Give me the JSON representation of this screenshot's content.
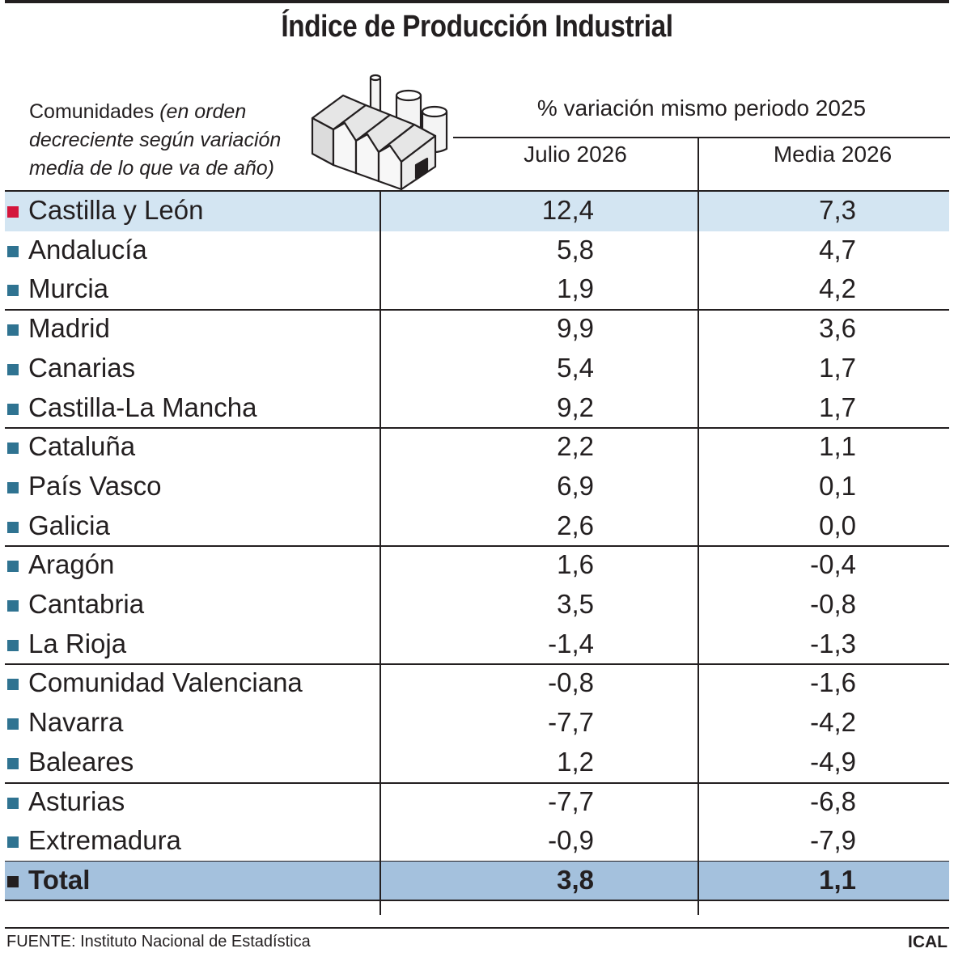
{
  "title": "Índice de Producción Industrial",
  "header": {
    "row_label_main": "Comunidades",
    "row_label_note": "(en orden decreciente según variación media de lo que va de año)",
    "group": "% variación mismo periodo 2025",
    "col_julio": "Julio 2026",
    "col_media": "Media 2026"
  },
  "icon": "factory-icon",
  "colors": {
    "highlight_row": "#d3e5f2",
    "total_row": "#a4c1dd",
    "marker_default": "#2f7391",
    "marker_highlight": "#d4163c",
    "marker_total": "#231f20"
  },
  "chart_data": {
    "type": "table",
    "title": "Índice de Producción Industrial",
    "columns": [
      "Comunidades",
      "Julio 2026",
      "Media 2026"
    ],
    "rows": [
      {
        "name": "Castilla y León",
        "julio": "12,4",
        "media": "7,3",
        "highlight": true
      },
      {
        "name": "Andalucía",
        "julio": "5,8",
        "media": "4,7"
      },
      {
        "name": "Murcia",
        "julio": "1,9",
        "media": "4,2"
      },
      {
        "name": "Madrid",
        "julio": "9,9",
        "media": "3,6"
      },
      {
        "name": "Canarias",
        "julio": "5,4",
        "media": "1,7"
      },
      {
        "name": "Castilla-La Mancha",
        "julio": "9,2",
        "media": "1,7"
      },
      {
        "name": "Cataluña",
        "julio": "2,2",
        "media": "1,1"
      },
      {
        "name": "País Vasco",
        "julio": "6,9",
        "media": "0,1"
      },
      {
        "name": "Galicia",
        "julio": "2,6",
        "media": "0,0"
      },
      {
        "name": "Aragón",
        "julio": "1,6",
        "media": "-0,4"
      },
      {
        "name": "Cantabria",
        "julio": "3,5",
        "media": "-0,8"
      },
      {
        "name": "La Rioja",
        "julio": "-1,4",
        "media": "-1,3"
      },
      {
        "name": "Comunidad Valenciana",
        "julio": "-0,8",
        "media": "-1,6"
      },
      {
        "name": "Navarra",
        "julio": "-7,7",
        "media": "-4,2"
      },
      {
        "name": "Baleares",
        "julio": "1,2",
        "media": "-4,9"
      },
      {
        "name": "Asturias",
        "julio": "-7,7",
        "media": "-6,8"
      },
      {
        "name": "Extremadura",
        "julio": "-0,9",
        "media": "-7,9"
      }
    ],
    "total": {
      "name": "Total",
      "julio": "3,8",
      "media": "1,1"
    }
  },
  "footer": {
    "source": "FUENTE: Instituto Nacional de Estadística",
    "credit": "ICAL"
  }
}
